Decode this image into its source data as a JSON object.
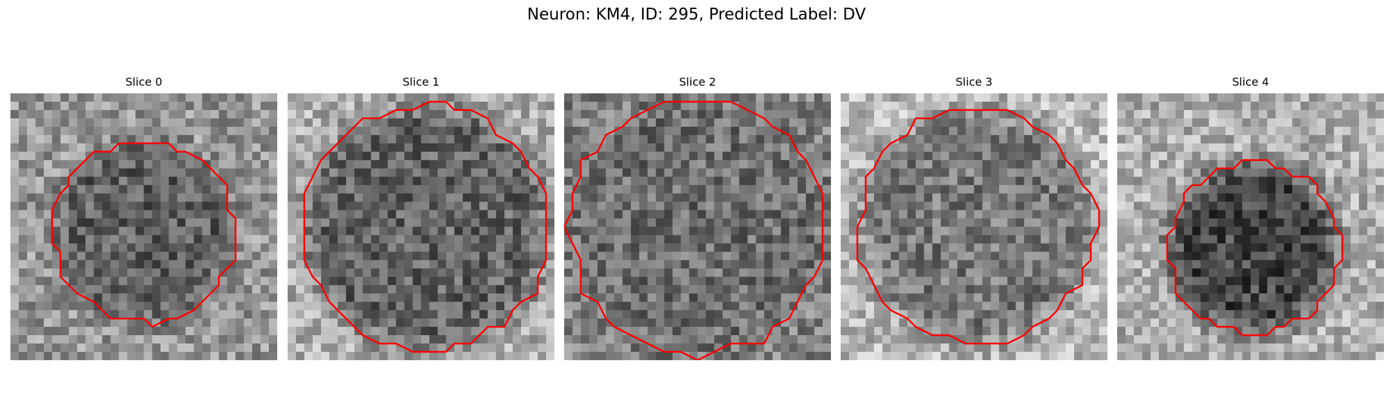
{
  "figure": {
    "title": "Neuron: KM4, ID: 295, Predicted Label: DV"
  },
  "slices": [
    {
      "title": "Slice 0",
      "seed": 11,
      "center": [
        0.5,
        0.52
      ],
      "radius": 0.34,
      "inside": 95,
      "outside": 150
    },
    {
      "title": "Slice 1",
      "seed": 23,
      "center": [
        0.52,
        0.5
      ],
      "radius": 0.46,
      "inside": 100,
      "outside": 175
    },
    {
      "title": "Slice 2",
      "seed": 37,
      "center": [
        0.5,
        0.5
      ],
      "radius": 0.48,
      "inside": 110,
      "outside": 130
    },
    {
      "title": "Slice 3",
      "seed": 41,
      "center": [
        0.51,
        0.5
      ],
      "radius": 0.44,
      "inside": 120,
      "outside": 185
    },
    {
      "title": "Slice 4",
      "seed": 53,
      "center": [
        0.51,
        0.58
      ],
      "radius": 0.32,
      "inside": 70,
      "outside": 175
    }
  ],
  "style": {
    "contour_color": "#ff0000"
  }
}
